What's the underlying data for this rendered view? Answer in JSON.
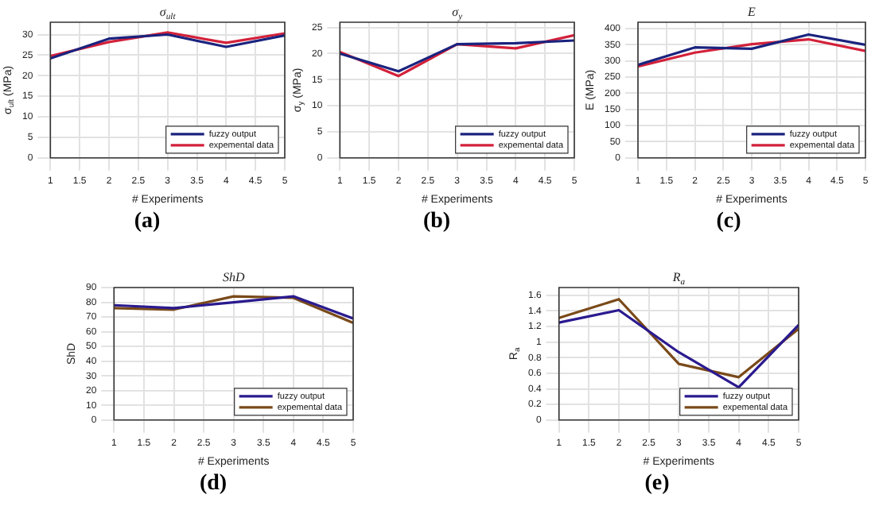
{
  "chart_data": [
    {
      "type": "line",
      "title": "σ$_{ult}$",
      "xlabel": "# Experiments",
      "ylabel": "σ$_{ult}$ (MPa)",
      "annotations": [
        "(a)"
      ],
      "x": [
        1,
        2,
        3,
        4,
        5
      ],
      "xlim": [
        1,
        5
      ],
      "xticks": [
        1,
        1.5,
        2,
        2.5,
        3,
        3.5,
        4,
        4.5,
        5
      ],
      "ylim": [
        0,
        33
      ],
      "yticks": [
        0,
        5,
        10,
        15,
        20,
        25,
        30
      ],
      "grid": true,
      "legend": "bottom right",
      "series": [
        {
          "name": "fuzzy output",
          "color": "#1a237e",
          "values": [
            24.2,
            29,
            30,
            27,
            29.8
          ]
        },
        {
          "name": "expemental data",
          "color": "#d3213a",
          "values": [
            24.8,
            28.2,
            30.5,
            28,
            30.3
          ]
        }
      ]
    },
    {
      "type": "line",
      "title": "σ$_{y}$",
      "xlabel": "# Experiments",
      "ylabel": "σ$_{y}$ (MPa)",
      "annotations": [
        "(b)"
      ],
      "x": [
        1,
        2,
        3,
        4,
        5
      ],
      "xlim": [
        1,
        5
      ],
      "xticks": [
        1,
        1.5,
        2,
        2.5,
        3,
        3.5,
        4,
        4.5,
        5
      ],
      "ylim": [
        0,
        26
      ],
      "yticks": [
        0,
        5,
        10,
        15,
        20,
        25
      ],
      "grid": true,
      "legend": "bottom right",
      "series": [
        {
          "name": "fuzzy output",
          "color": "#1a237e",
          "values": [
            20,
            16.6,
            21.8,
            22,
            22.5
          ]
        },
        {
          "name": "expemental data",
          "color": "#d3213a",
          "values": [
            20.3,
            15.7,
            21.8,
            21,
            23.5
          ]
        }
      ]
    },
    {
      "type": "line",
      "title": "E",
      "xlabel": "# Experiments",
      "ylabel": "E (MPa)",
      "annotations": [
        "(c)"
      ],
      "x": [
        1,
        2,
        3,
        4,
        5
      ],
      "xlim": [
        1,
        5
      ],
      "xticks": [
        1,
        1.5,
        2,
        2.5,
        3,
        3.5,
        4,
        4.5,
        5
      ],
      "ylim": [
        0,
        420
      ],
      "yticks": [
        0,
        50,
        100,
        150,
        200,
        250,
        300,
        350,
        400
      ],
      "grid": true,
      "legend": "bottom right",
      "series": [
        {
          "name": "fuzzy output",
          "color": "#1a237e",
          "values": [
            288,
            342,
            338,
            382,
            350
          ]
        },
        {
          "name": "expemental data",
          "color": "#d3213a",
          "values": [
            283,
            326,
            352,
            367,
            331
          ]
        }
      ]
    },
    {
      "type": "line",
      "title": "ShD",
      "xlabel": "# Experiments",
      "ylabel": "ShD",
      "annotations": [
        "(d)"
      ],
      "x": [
        1,
        2,
        3,
        4,
        5
      ],
      "xlim": [
        1,
        5
      ],
      "xticks": [
        1,
        1.5,
        2,
        2.5,
        3,
        3.5,
        4,
        4.5,
        5
      ],
      "ylim": [
        0,
        90
      ],
      "yticks": [
        0,
        10,
        20,
        30,
        40,
        50,
        60,
        70,
        80,
        90
      ],
      "grid": true,
      "legend": "bottom right",
      "series": [
        {
          "name": "fuzzy output",
          "color": "#2a1a8f",
          "values": [
            78,
            76,
            80,
            84,
            69
          ]
        },
        {
          "name": "expemental data",
          "color": "#7a4a1a",
          "values": [
            76,
            75,
            84,
            83,
            66
          ]
        }
      ]
    },
    {
      "type": "line",
      "title": "R$_{a}$",
      "xlabel": "# Experiments",
      "ylabel": "R$_{a}$",
      "annotations": [
        "(e)"
      ],
      "x": [
        1,
        2,
        3,
        4,
        5
      ],
      "xlim": [
        1,
        5
      ],
      "xticks": [
        1,
        1.5,
        2,
        2.5,
        3,
        3.5,
        4,
        4.5,
        5
      ],
      "ylim": [
        0,
        1.7
      ],
      "yticks": [
        0,
        0.2,
        0.4,
        0.6,
        0.8,
        1,
        1.2,
        1.4,
        1.6
      ],
      "grid": true,
      "legend": "bottom right",
      "series": [
        {
          "name": "fuzzy output",
          "color": "#2a1a8f",
          "values": [
            1.25,
            1.41,
            0.87,
            0.42,
            1.22
          ]
        },
        {
          "name": "expemental data",
          "color": "#7a4a1a",
          "values": [
            1.31,
            1.55,
            0.72,
            0.55,
            1.17
          ]
        }
      ]
    }
  ]
}
